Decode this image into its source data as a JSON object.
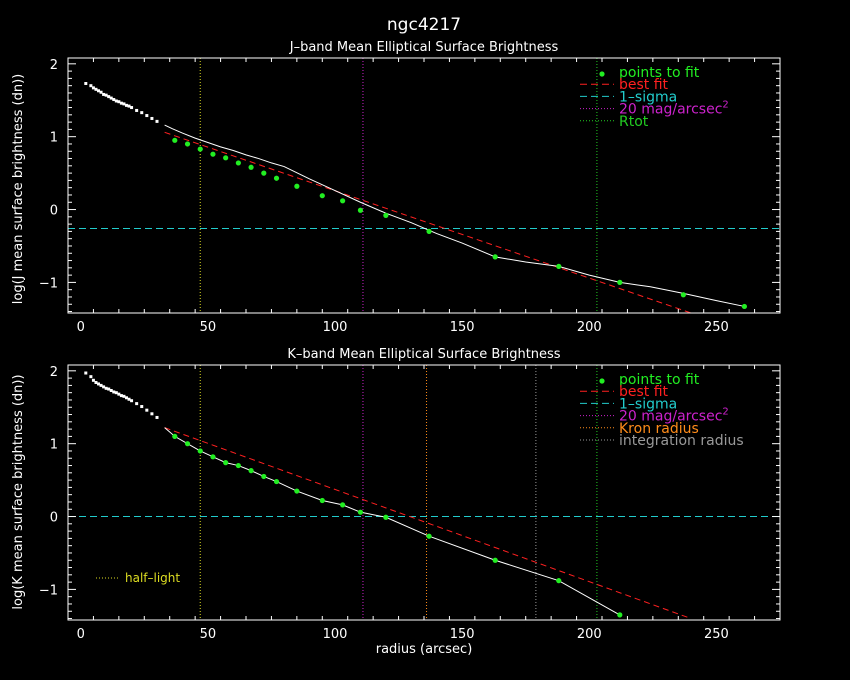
{
  "title": "ngc4217",
  "colors": {
    "background": "#000000",
    "axes": "#ffffff",
    "points": "#22ee22",
    "best_fit": "#ff2020",
    "one_sigma": "#22cccc",
    "mag20": "#cc22cc",
    "rtot": "#22cc22",
    "half_light": "#dddd22",
    "kron": "#ff8c1a",
    "integration": "#999999"
  },
  "chart_data": [
    {
      "type": "line",
      "title": "J–band Mean Elliptical Surface Brightness",
      "xlabel": "",
      "ylabel": "log(J mean surface brightness (dn))",
      "xlim": [
        -5,
        275
      ],
      "ylim": [
        -1.42,
        2.08
      ],
      "xticks": [
        0,
        50,
        100,
        150,
        200,
        250
      ],
      "yticks": [
        -1,
        0,
        1,
        2
      ],
      "legend_position": "top-right",
      "legend": [
        {
          "key": "points",
          "label": "points to fit",
          "style": "dot",
          "color_key": "points"
        },
        {
          "key": "fit",
          "label": "best fit",
          "style": "dashed",
          "color_key": "best_fit"
        },
        {
          "key": "sigma",
          "label": "1–sigma",
          "style": "dashed",
          "color_key": "one_sigma"
        },
        {
          "key": "mag20",
          "label": "20 mag/arcsec",
          "sup": "2",
          "style": "dotted",
          "color_key": "mag20"
        },
        {
          "key": "rtot",
          "label": "Rtot",
          "style": "dotted",
          "color_key": "rtot"
        }
      ],
      "profile": {
        "x": [
          2,
          4,
          5,
          6,
          7,
          8,
          9,
          10,
          11,
          12,
          13,
          14,
          15,
          16,
          17,
          18,
          19,
          20,
          22,
          24,
          26,
          28,
          30,
          33,
          36,
          40,
          45,
          50,
          55,
          60,
          65,
          70,
          75,
          80,
          90,
          100,
          110,
          120,
          130,
          140,
          150,
          163,
          175,
          188,
          200,
          212,
          224,
          237,
          250,
          261
        ],
        "y": [
          1.73,
          1.7,
          1.67,
          1.65,
          1.63,
          1.61,
          1.58,
          1.57,
          1.55,
          1.53,
          1.51,
          1.49,
          1.48,
          1.46,
          1.45,
          1.43,
          1.42,
          1.4,
          1.36,
          1.33,
          1.29,
          1.25,
          1.21,
          1.16,
          1.11,
          1.05,
          0.98,
          0.92,
          0.86,
          0.81,
          0.75,
          0.7,
          0.64,
          0.59,
          0.42,
          0.26,
          0.1,
          -0.05,
          -0.18,
          -0.33,
          -0.46,
          -0.65,
          -0.72,
          -0.78,
          -0.9,
          -1.0,
          -1.06,
          -1.15,
          -1.25,
          -1.33
        ],
        "fit_start_x": 33
      },
      "points_to_fit": {
        "x": [
          37,
          42,
          47,
          52,
          57,
          62,
          67,
          72,
          77,
          85,
          95,
          103,
          110,
          120,
          137,
          163,
          188,
          212,
          237,
          261
        ],
        "y": [
          0.95,
          0.9,
          0.83,
          0.76,
          0.71,
          0.64,
          0.58,
          0.5,
          0.43,
          0.32,
          0.19,
          0.12,
          -0.01,
          -0.08,
          -0.3,
          -0.65,
          -0.78,
          -1.0,
          -1.17,
          -1.33
        ]
      },
      "best_fit": {
        "x": [
          33,
          240
        ],
        "y": [
          1.06,
          -1.42
        ]
      },
      "one_sigma": -0.26,
      "vlines": [
        {
          "key": "half_light",
          "x": 47,
          "color_key": "half_light"
        },
        {
          "key": "mag20",
          "x": 111,
          "color_key": "mag20"
        },
        {
          "key": "rtot",
          "x": 203,
          "color_key": "rtot"
        }
      ]
    },
    {
      "type": "line",
      "title": "K–band Mean Elliptical Surface Brightness",
      "xlabel": "radius (arcsec)",
      "ylabel": "log(K mean surface brightness (dn))",
      "xlim": [
        -5,
        275
      ],
      "ylim": [
        -1.42,
        2.08
      ],
      "xticks": [
        0,
        50,
        100,
        150,
        200,
        250
      ],
      "yticks": [
        -1,
        0,
        1,
        2
      ],
      "legend_position": "top-right",
      "legend": [
        {
          "key": "points",
          "label": "points to fit",
          "style": "dot",
          "color_key": "points"
        },
        {
          "key": "fit",
          "label": "best fit",
          "style": "dashed",
          "color_key": "best_fit"
        },
        {
          "key": "sigma",
          "label": "1–sigma",
          "style": "dashed",
          "color_key": "one_sigma"
        },
        {
          "key": "mag20",
          "label": "20 mag/arcsec",
          "sup": "2",
          "style": "dotted",
          "color_key": "mag20"
        },
        {
          "key": "kron",
          "label": "Kron radius",
          "style": "dotted",
          "color_key": "kron"
        },
        {
          "key": "integration",
          "label": "integration radius",
          "style": "dotted",
          "color_key": "integration"
        }
      ],
      "half_light_label": "half–light",
      "profile": {
        "x": [
          2,
          4,
          5,
          6,
          7,
          8,
          9,
          10,
          11,
          12,
          13,
          14,
          15,
          16,
          17,
          18,
          19,
          20,
          22,
          24,
          26,
          28,
          30,
          33,
          37,
          42,
          47,
          52,
          57,
          62,
          67,
          72,
          77,
          85,
          95,
          103,
          110,
          120,
          137,
          163,
          188,
          212
        ],
        "y": [
          1.97,
          1.92,
          1.87,
          1.84,
          1.82,
          1.8,
          1.78,
          1.76,
          1.75,
          1.73,
          1.71,
          1.7,
          1.68,
          1.66,
          1.65,
          1.63,
          1.61,
          1.59,
          1.55,
          1.51,
          1.46,
          1.41,
          1.36,
          1.22,
          1.1,
          1.0,
          0.9,
          0.82,
          0.74,
          0.7,
          0.63,
          0.55,
          0.48,
          0.35,
          0.22,
          0.16,
          0.06,
          -0.01,
          -0.27,
          -0.6,
          -0.88,
          -1.35
        ],
        "fit_start_x": 33
      },
      "points_to_fit": {
        "x": [
          37,
          42,
          47,
          52,
          57,
          62,
          67,
          72,
          77,
          85,
          95,
          103,
          110,
          120,
          137,
          163,
          188,
          212
        ],
        "y": [
          1.1,
          1.0,
          0.9,
          0.82,
          0.74,
          0.7,
          0.63,
          0.55,
          0.48,
          0.35,
          0.22,
          0.16,
          0.06,
          -0.01,
          -0.27,
          -0.6,
          -0.88,
          -1.35
        ]
      },
      "best_fit": {
        "x": [
          33,
          240
        ],
        "y": [
          1.22,
          -1.4
        ]
      },
      "one_sigma": 0.0,
      "vlines": [
        {
          "key": "half_light",
          "x": 47,
          "color_key": "half_light"
        },
        {
          "key": "mag20",
          "x": 111,
          "color_key": "mag20"
        },
        {
          "key": "kron",
          "x": 136,
          "color_key": "kron"
        },
        {
          "key": "integration",
          "x": 179,
          "color_key": "integration"
        },
        {
          "key": "rtot",
          "x": 203,
          "color_key": "rtot"
        }
      ]
    }
  ]
}
